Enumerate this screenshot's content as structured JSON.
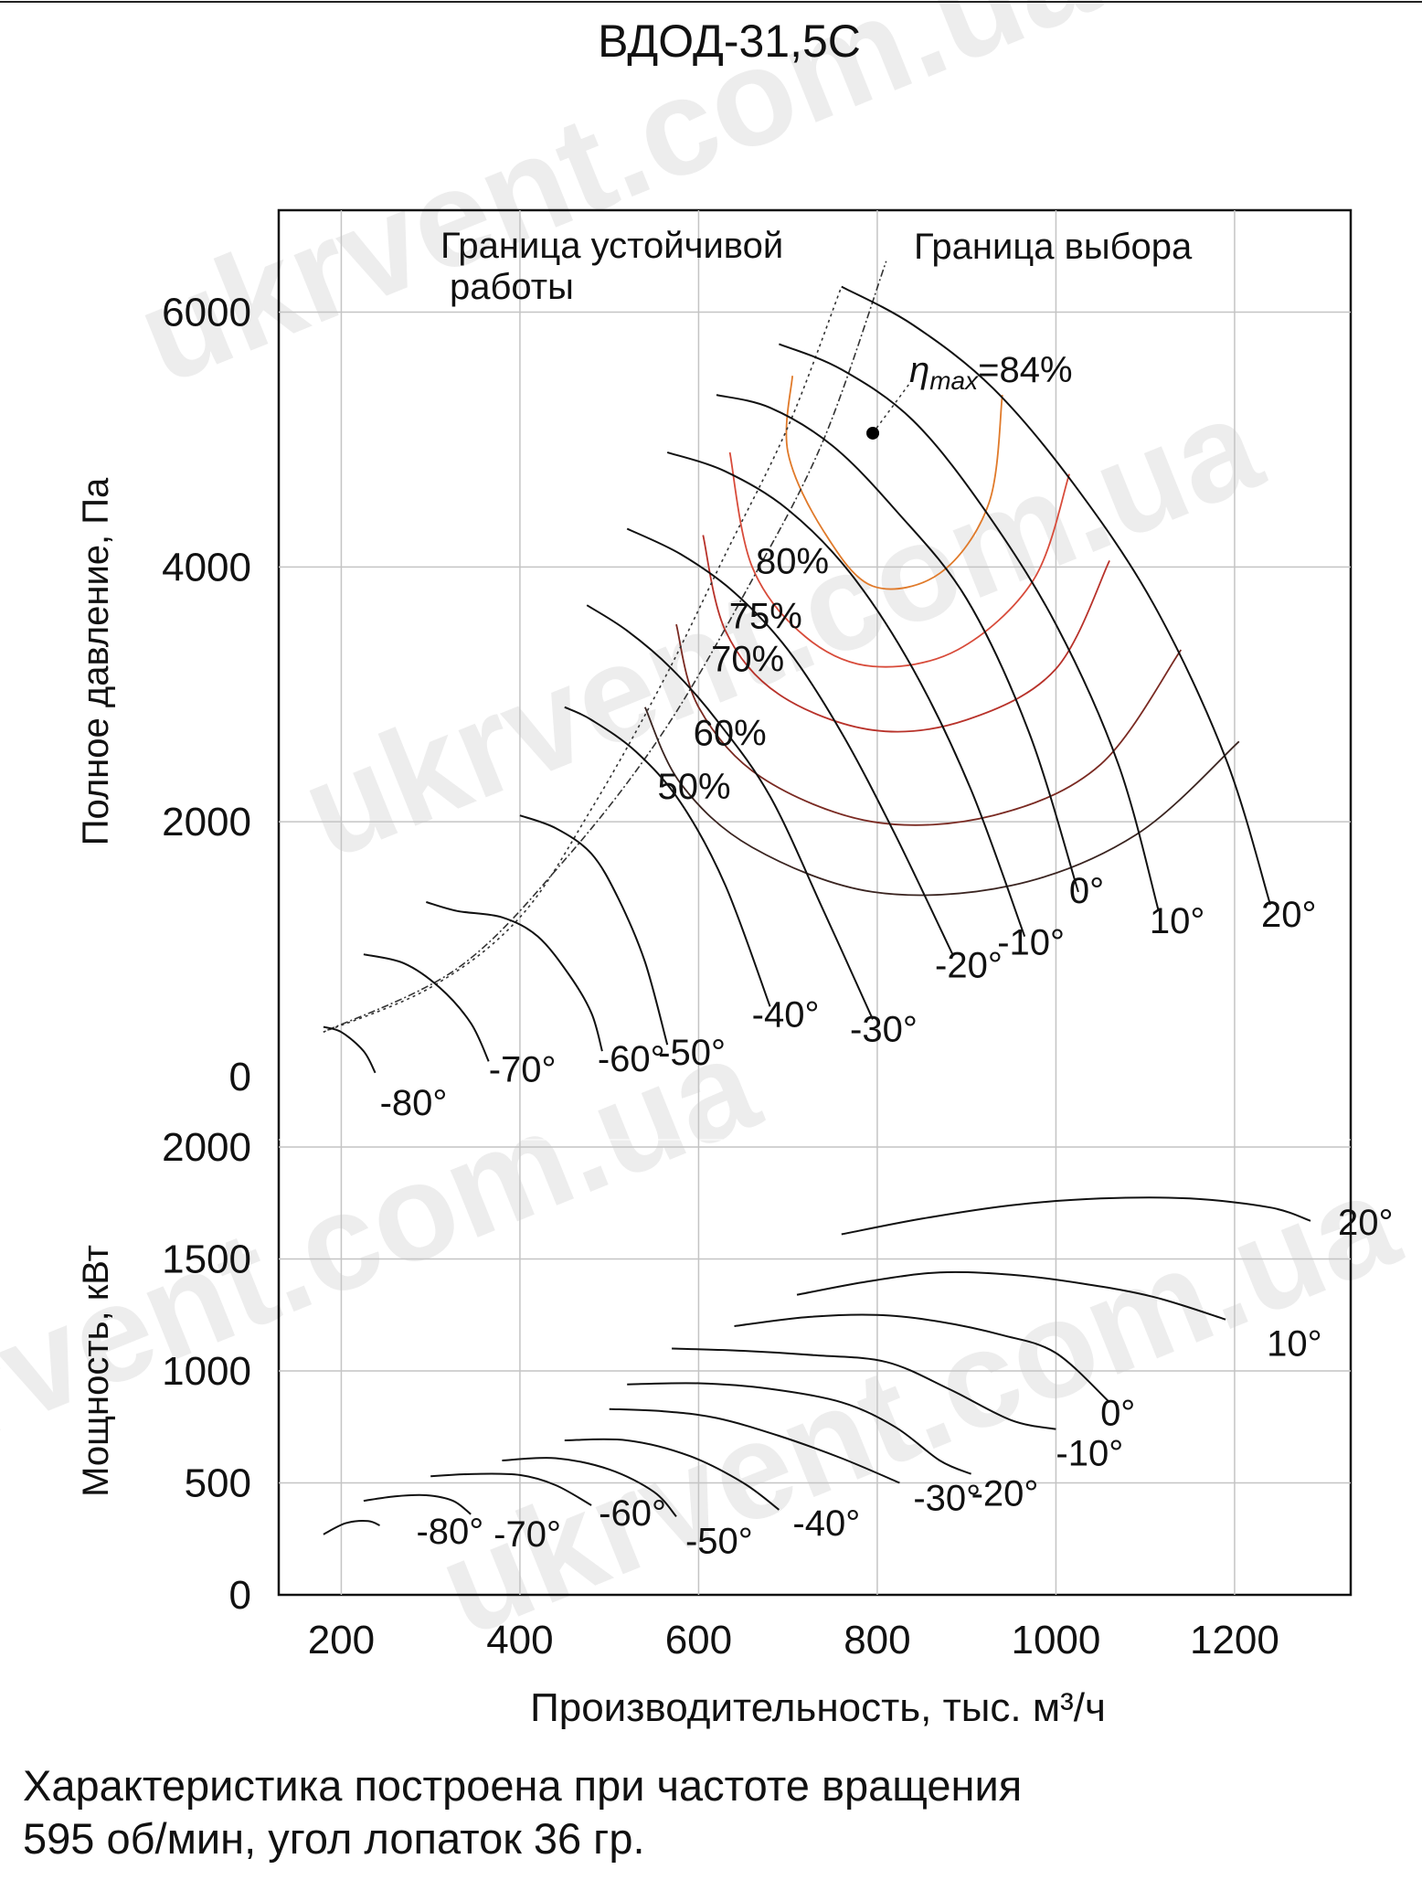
{
  "watermark": "ukrvent.com.ua",
  "caption": {
    "line1": "Характеристика построена при частоте вращения",
    "line2": "595 об/мин, угол лопаток 36 гр."
  },
  "chart_data": [
    {
      "type": "line",
      "title": "ВДОД-31,5С",
      "xlabel": "",
      "ylabel": "Полное давление, Па",
      "xlim": [
        130,
        1330
      ],
      "ylim": [
        0,
        6800
      ],
      "xticks": [
        200,
        400,
        600,
        800,
        1000,
        1200
      ],
      "yticks": [
        0,
        2000,
        4000,
        6000
      ],
      "grid": true,
      "annotations": {
        "stable_boundary": "Граница устойчивой работы",
        "selection_boundary": "Граница выбора",
        "eta_max": "=84%",
        "eta_symbol": "η",
        "eta_sub": "max"
      },
      "boundaries": [
        {
          "name": "Граница устойчивой работы",
          "points": [
            [
              180,
              350
            ],
            [
              300,
              700
            ],
            [
              400,
              1250
            ],
            [
              480,
              2100
            ],
            [
              560,
              3100
            ],
            [
              630,
              4100
            ],
            [
              700,
              5100
            ],
            [
              760,
              6200
            ]
          ]
        },
        {
          "name": "Граница выбора",
          "points": [
            [
              180,
              350
            ],
            [
              330,
              850
            ],
            [
              450,
              1700
            ],
            [
              560,
              2700
            ],
            [
              660,
              3900
            ],
            [
              740,
              5000
            ],
            [
              810,
              6400
            ]
          ]
        }
      ],
      "eta_max_point": {
        "x": 795,
        "y": 5050,
        "value": "84%"
      },
      "series": [
        {
          "name": "-80°",
          "values": [
            [
              180,
              390
            ],
            [
              200,
              350
            ],
            [
              225,
              200
            ],
            [
              238,
              30
            ]
          ]
        },
        {
          "name": "-70°",
          "values": [
            [
              225,
              960
            ],
            [
              270,
              890
            ],
            [
              310,
              700
            ],
            [
              345,
              420
            ],
            [
              365,
              120
            ]
          ]
        },
        {
          "name": "-60°",
          "values": [
            [
              295,
              1370
            ],
            [
              330,
              1300
            ],
            [
              380,
              1250
            ],
            [
              420,
              1100
            ],
            [
              455,
              800
            ],
            [
              480,
              500
            ],
            [
              492,
              200
            ]
          ]
        },
        {
          "name": "-50°",
          "values": [
            [
              400,
              2050
            ],
            [
              440,
              1950
            ],
            [
              480,
              1750
            ],
            [
              510,
              1400
            ],
            [
              540,
              900
            ],
            [
              565,
              250
            ]
          ]
        },
        {
          "name": "-40°",
          "values": [
            [
              450,
              2900
            ],
            [
              480,
              2800
            ],
            [
              530,
              2550
            ],
            [
              580,
              2150
            ],
            [
              630,
              1500
            ],
            [
              680,
              550
            ]
          ]
        },
        {
          "name": "-30°",
          "values": [
            [
              475,
              3700
            ],
            [
              520,
              3500
            ],
            [
              570,
              3200
            ],
            [
              620,
              2800
            ],
            [
              680,
              2200
            ],
            [
              740,
              1300
            ],
            [
              795,
              450
            ]
          ]
        },
        {
          "name": "-20°",
          "values": [
            [
              520,
              4300
            ],
            [
              580,
              4100
            ],
            [
              640,
              3800
            ],
            [
              700,
              3350
            ],
            [
              760,
              2700
            ],
            [
              820,
              1900
            ],
            [
              885,
              950
            ]
          ]
        },
        {
          "name": "-10°",
          "values": [
            [
              565,
              4900
            ],
            [
              630,
              4750
            ],
            [
              700,
              4450
            ],
            [
              770,
              3950
            ],
            [
              840,
              3200
            ],
            [
              905,
              2250
            ],
            [
              965,
              1100
            ]
          ]
        },
        {
          "name": "0°",
          "values": [
            [
              620,
              5350
            ],
            [
              680,
              5250
            ],
            [
              750,
              4950
            ],
            [
              820,
              4450
            ],
            [
              900,
              3750
            ],
            [
              970,
              2700
            ],
            [
              1025,
              1450
            ]
          ]
        },
        {
          "name": "10°",
          "values": [
            [
              690,
              5750
            ],
            [
              760,
              5550
            ],
            [
              840,
              5150
            ],
            [
              920,
              4450
            ],
            [
              1000,
              3550
            ],
            [
              1070,
              2450
            ],
            [
              1115,
              1300
            ]
          ]
        },
        {
          "name": "20°",
          "values": [
            [
              760,
              6200
            ],
            [
              840,
              5900
            ],
            [
              930,
              5400
            ],
            [
              1020,
              4650
            ],
            [
              1110,
              3700
            ],
            [
              1190,
              2500
            ],
            [
              1240,
              1350
            ]
          ]
        }
      ],
      "efficiency_contours": [
        {
          "name": "80%",
          "label_at": [
            705,
            3950
          ],
          "points": [
            [
              705,
              5500
            ],
            [
              700,
              4900
            ],
            [
              740,
              4280
            ],
            [
              795,
              3850
            ],
            [
              870,
              3950
            ],
            [
              925,
              4500
            ],
            [
              940,
              5350
            ]
          ]
        },
        {
          "name": "75%",
          "label_at": [
            675,
            3520
          ],
          "points": [
            [
              635,
              4900
            ],
            [
              660,
              4000
            ],
            [
              720,
              3450
            ],
            [
              795,
              3220
            ],
            [
              890,
              3350
            ],
            [
              975,
              3900
            ],
            [
              1015,
              4730
            ]
          ]
        },
        {
          "name": "70%",
          "label_at": [
            655,
            3180
          ],
          "points": [
            [
              605,
              4250
            ],
            [
              630,
              3500
            ],
            [
              690,
              3000
            ],
            [
              795,
              2720
            ],
            [
              900,
              2800
            ],
            [
              1000,
              3200
            ],
            [
              1060,
              4050
            ]
          ]
        },
        {
          "name": "60%",
          "label_at": [
            635,
            2600
          ],
          "points": [
            [
              575,
              3550
            ],
            [
              600,
              2900
            ],
            [
              670,
              2350
            ],
            [
              795,
              2000
            ],
            [
              930,
              2050
            ],
            [
              1050,
              2450
            ],
            [
              1140,
              3350
            ]
          ]
        },
        {
          "name": "50%",
          "label_at": [
            595,
            2180
          ],
          "points": [
            [
              540,
              2900
            ],
            [
              580,
              2300
            ],
            [
              660,
              1800
            ],
            [
              795,
              1450
            ],
            [
              950,
              1500
            ],
            [
              1090,
              1900
            ],
            [
              1205,
              2630
            ]
          ]
        }
      ]
    },
    {
      "type": "line",
      "xlabel": "Производительность, тыс. м³/ч",
      "ylabel": "Мощность, кВт",
      "xlim": [
        130,
        1330
      ],
      "ylim": [
        0,
        2000
      ],
      "xticks": [
        200,
        400,
        600,
        800,
        1000,
        1200
      ],
      "yticks": [
        0,
        500,
        1000,
        1500,
        2000
      ],
      "grid": true,
      "series": [
        {
          "name": "-80°",
          "values": [
            [
              180,
              270
            ],
            [
              205,
              320
            ],
            [
              230,
              330
            ],
            [
              243,
              310
            ]
          ]
        },
        {
          "name": "-70°",
          "values": [
            [
              225,
              420
            ],
            [
              260,
              440
            ],
            [
              295,
              445
            ],
            [
              325,
              420
            ],
            [
              345,
              360
            ]
          ]
        },
        {
          "name": "-60°",
          "values": [
            [
              300,
              530
            ],
            [
              350,
              540
            ],
            [
              400,
              535
            ],
            [
              440,
              490
            ],
            [
              480,
              400
            ]
          ]
        },
        {
          "name": "-50°",
          "values": [
            [
              380,
              600
            ],
            [
              440,
              610
            ],
            [
              500,
              560
            ],
            [
              550,
              460
            ],
            [
              575,
              350
            ]
          ]
        },
        {
          "name": "-40°",
          "values": [
            [
              450,
              690
            ],
            [
              520,
              690
            ],
            [
              590,
              620
            ],
            [
              650,
              500
            ],
            [
              690,
              380
            ]
          ]
        },
        {
          "name": "-30°",
          "values": [
            [
              500,
              830
            ],
            [
              560,
              820
            ],
            [
              620,
              790
            ],
            [
              690,
              710
            ],
            [
              760,
              610
            ],
            [
              825,
              500
            ]
          ]
        },
        {
          "name": "-20°",
          "values": [
            [
              520,
              940
            ],
            [
              600,
              945
            ],
            [
              680,
              920
            ],
            [
              760,
              860
            ],
            [
              820,
              750
            ],
            [
              870,
              600
            ],
            [
              905,
              540
            ]
          ]
        },
        {
          "name": "-10°",
          "values": [
            [
              570,
              1100
            ],
            [
              650,
              1090
            ],
            [
              730,
              1070
            ],
            [
              810,
              1040
            ],
            [
              880,
              920
            ],
            [
              950,
              780
            ],
            [
              1000,
              740
            ]
          ]
        },
        {
          "name": "0°",
          "values": [
            [
              640,
              1200
            ],
            [
              720,
              1240
            ],
            [
              800,
              1250
            ],
            [
              870,
              1220
            ],
            [
              940,
              1160
            ],
            [
              1000,
              1080
            ],
            [
              1060,
              860
            ]
          ]
        },
        {
          "name": "10°",
          "values": [
            [
              710,
              1340
            ],
            [
              790,
              1400
            ],
            [
              870,
              1440
            ],
            [
              950,
              1430
            ],
            [
              1030,
              1390
            ],
            [
              1110,
              1330
            ],
            [
              1190,
              1230
            ]
          ]
        },
        {
          "name": "20°",
          "values": [
            [
              760,
              1610
            ],
            [
              850,
              1680
            ],
            [
              950,
              1740
            ],
            [
              1050,
              1770
            ],
            [
              1150,
              1770
            ],
            [
              1240,
              1730
            ],
            [
              1285,
              1670
            ]
          ]
        }
      ]
    }
  ]
}
